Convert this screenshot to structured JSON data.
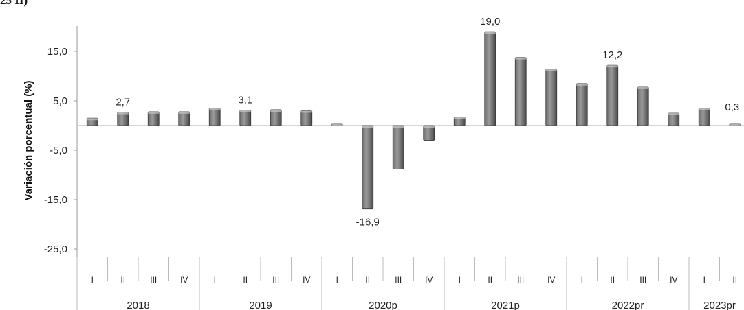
{
  "corner_text": "25 II)",
  "chart_data": {
    "type": "bar",
    "ylabel": "Variación porcentual (%)",
    "ylim": [
      -25,
      20
    ],
    "yticks": [
      "15,0",
      "5,0",
      "-5,0",
      "-15,0",
      "-25,0"
    ],
    "ytick_values": [
      15,
      5,
      -5,
      -15,
      -25
    ],
    "grid": false,
    "years": [
      {
        "label": "2018",
        "quarters": [
          "I",
          "II",
          "III",
          "IV"
        ]
      },
      {
        "label": "2019",
        "quarters": [
          "I",
          "II",
          "III",
          "IV"
        ]
      },
      {
        "label": "2020p",
        "quarters": [
          "I",
          "II",
          "III",
          "IV"
        ]
      },
      {
        "label": "2021p",
        "quarters": [
          "I",
          "II",
          "III",
          "IV"
        ]
      },
      {
        "label": "2022pr",
        "quarters": [
          "I",
          "II",
          "III",
          "IV"
        ]
      },
      {
        "label": "2023pr",
        "quarters": [
          "I",
          "II"
        ]
      }
    ],
    "values": [
      1.5,
      2.7,
      2.8,
      2.8,
      3.5,
      3.1,
      3.2,
      3.0,
      0.3,
      -16.9,
      -8.8,
      -3.0,
      1.7,
      19.0,
      13.8,
      11.4,
      8.5,
      12.2,
      7.8,
      2.5,
      3.5,
      0.3
    ],
    "data_labels": {
      "1": "2,7",
      "5": "3,1",
      "9": "-16,9",
      "13": "19,0",
      "17": "12,2",
      "21": "0,3"
    }
  }
}
